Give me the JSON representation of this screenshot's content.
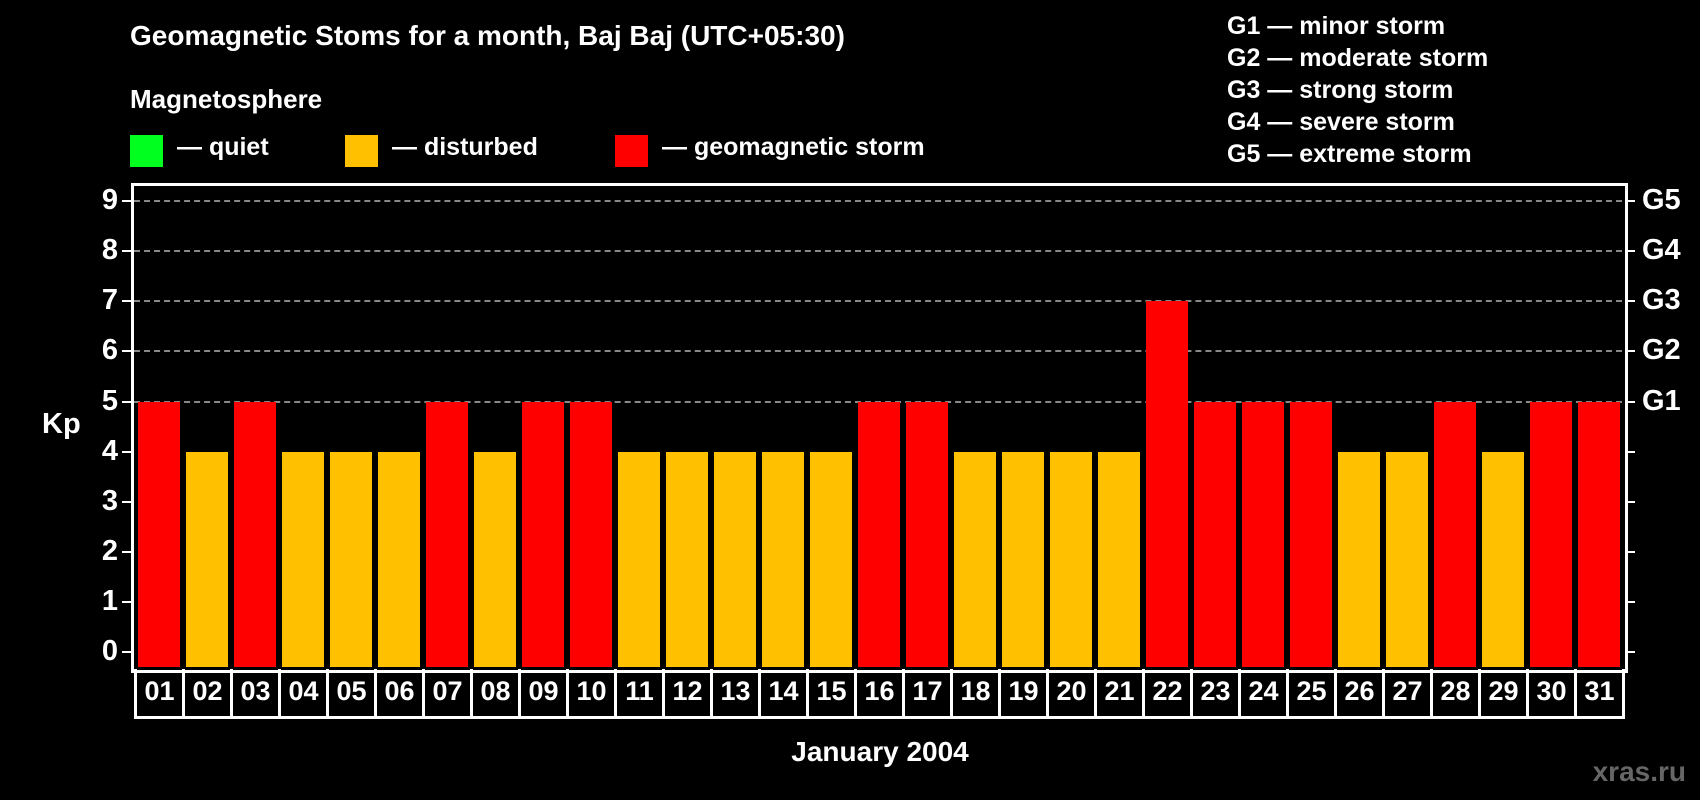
{
  "header": {
    "title": "Geomagnetic Stoms for a month, Baj Baj (UTC+05:30)",
    "section_label": "Magnetosphere"
  },
  "legend": [
    {
      "label": "— quiet",
      "color": "#00ff1e"
    },
    {
      "label": "— disturbed",
      "color": "#ffc000"
    },
    {
      "label": "— geomagnetic storm",
      "color": "#ff0000"
    }
  ],
  "g_scale_legend": [
    "G1 — minor storm",
    "G2 — moderate storm",
    "G3 — strong storm",
    "G4 — severe storm",
    "G5 — extreme storm"
  ],
  "watermark": "xras.ru",
  "chart_data": {
    "type": "bar",
    "title": "Geomagnetic Stoms for a month, Baj Baj (UTC+05:30)",
    "xlabel": "January 2004",
    "ylabel": "Kp",
    "ylim": [
      0,
      9
    ],
    "yticks": [
      0,
      1,
      2,
      3,
      4,
      5,
      6,
      7,
      8,
      9
    ],
    "right_axis_labels": {
      "5": "G1",
      "6": "G2",
      "7": "G3",
      "8": "G4",
      "9": "G5"
    },
    "grid": "horizontal dashed at 5-9",
    "categories": [
      "01",
      "02",
      "03",
      "04",
      "05",
      "06",
      "07",
      "08",
      "09",
      "10",
      "11",
      "12",
      "13",
      "14",
      "15",
      "16",
      "17",
      "18",
      "19",
      "20",
      "21",
      "22",
      "23",
      "24",
      "25",
      "26",
      "27",
      "28",
      "29",
      "30",
      "31"
    ],
    "values": [
      5,
      4,
      5,
      4,
      4,
      4,
      5,
      4,
      5,
      5,
      4,
      4,
      4,
      4,
      4,
      5,
      5,
      4,
      4,
      4,
      4,
      7,
      5,
      5,
      5,
      4,
      4,
      5,
      4,
      5,
      5
    ],
    "color_rule": {
      "quiet": "#00ff1e",
      "disturbed (Kp=4)": "#ffc000",
      "storm (Kp>=5)": "#ff0000"
    },
    "legend_position": "top"
  }
}
